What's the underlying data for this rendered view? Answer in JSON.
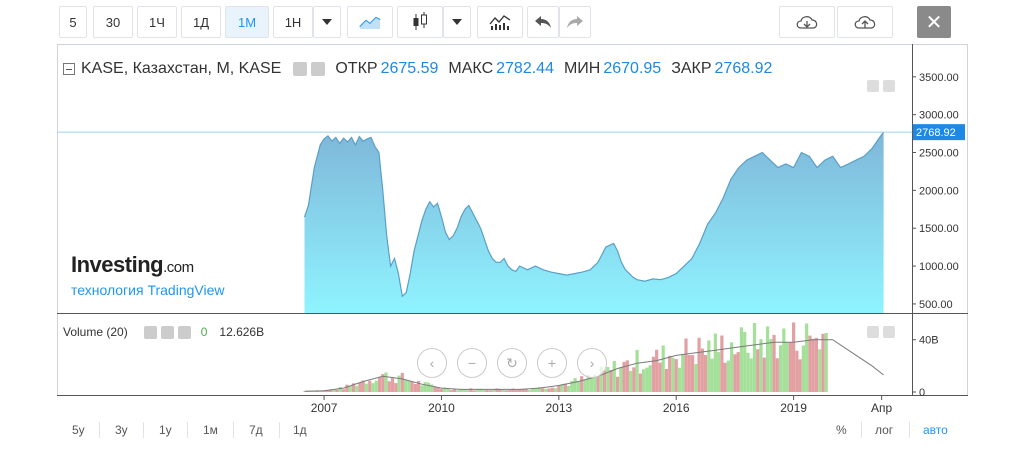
{
  "toolbar": {
    "intervals": [
      "5",
      "30",
      "1Ч",
      "1Д",
      "1М",
      "1Н"
    ],
    "active_interval": "1М",
    "close_label": "✕"
  },
  "legend": {
    "symbol": "KASE, Казахстан, M, KASE",
    "open_label": "ОТКР",
    "open": "2675.59",
    "high_label": "МАКС",
    "high": "2782.44",
    "low_label": "МИН",
    "low": "2670.95",
    "close_label": "ЗАКР",
    "close": "2768.92"
  },
  "volume_legend": {
    "label": "Volume (20)",
    "value0": "0",
    "value1": "12.626B"
  },
  "watermark": {
    "brand": "Investing",
    "brand_suffix": ".com",
    "sub": "технология TradingView"
  },
  "bottom_bar": {
    "ranges": [
      "5y",
      "3y",
      "1y",
      "1м",
      "7д",
      "1д"
    ],
    "percent": "%",
    "log": "лог",
    "auto": "авто"
  },
  "colors": {
    "area_top": "#7fb7d9",
    "area_bottom": "#8ff4ff",
    "line": "#5a9fc7",
    "vol_up": "#a5e09a",
    "vol_down": "#e3a0a3",
    "vol_ma": "#7a7a7a",
    "price_badge": "#1e88e5"
  },
  "chart_data": {
    "type": "area",
    "y_tick_labels": [
      "3500.00",
      "3000.00",
      "2500.00",
      "2000.00",
      "1500.00",
      "1000.00",
      "500.00"
    ],
    "y_ticks": [
      3500,
      3000,
      2500,
      2000,
      1500,
      1000,
      500
    ],
    "ylim": [
      380,
      3920
    ],
    "x_tick_labels": [
      "2007",
      "2010",
      "2013",
      "2016",
      "2019",
      "Апр"
    ],
    "x_ticks": [
      2007,
      2010,
      2013,
      2016,
      2019,
      2021.25
    ],
    "xlim": [
      2000.2,
      2022.0
    ],
    "last_price_label": "2768.92",
    "last_price": 2768.92,
    "series": [
      {
        "x": [
          2006.5,
          2006.6,
          2006.75,
          2006.9,
          2007.0,
          2007.1,
          2007.2,
          2007.3,
          2007.4,
          2007.5,
          2007.6,
          2007.7,
          2007.8,
          2007.9,
          2008.0,
          2008.1,
          2008.2,
          2008.3,
          2008.4,
          2008.5,
          2008.6,
          2008.7,
          2008.8,
          2008.9,
          2009.0,
          2009.1,
          2009.2,
          2009.3,
          2009.4,
          2009.5,
          2009.6,
          2009.7,
          2009.8,
          2009.9,
          2010.0,
          2010.1,
          2010.2,
          2010.3,
          2010.4,
          2010.5,
          2010.6,
          2010.7,
          2010.8,
          2010.9,
          2011.0,
          2011.1,
          2011.2,
          2011.3,
          2011.4,
          2011.5,
          2011.6,
          2011.7,
          2011.8,
          2011.9,
          2012.0,
          2012.2,
          2012.4,
          2012.6,
          2012.8,
          2013.0,
          2013.2,
          2013.4,
          2013.6,
          2013.8,
          2014.0,
          2014.2,
          2014.4,
          2014.5,
          2014.6,
          2014.7,
          2014.8,
          2014.9,
          2015.0,
          2015.2,
          2015.4,
          2015.6,
          2015.8,
          2016.0,
          2016.2,
          2016.4,
          2016.6,
          2016.8,
          2017.0,
          2017.2,
          2017.4,
          2017.6,
          2017.8,
          2018.0,
          2018.2,
          2018.4,
          2018.6,
          2018.8,
          2019.0,
          2019.2,
          2019.4,
          2019.6,
          2019.8,
          2020.0,
          2020.2,
          2020.4,
          2020.6,
          2020.8,
          2021.0,
          2021.2,
          2021.3
        ],
        "y": [
          1650,
          1800,
          2300,
          2600,
          2680,
          2720,
          2650,
          2700,
          2620,
          2690,
          2640,
          2700,
          2600,
          2710,
          2650,
          2680,
          2700,
          2580,
          2500,
          2000,
          1400,
          1000,
          1100,
          900,
          600,
          650,
          900,
          1200,
          1400,
          1600,
          1750,
          1850,
          1780,
          1830,
          1650,
          1450,
          1350,
          1400,
          1500,
          1650,
          1750,
          1800,
          1700,
          1600,
          1500,
          1350,
          1200,
          1100,
          1050,
          1050,
          1100,
          1000,
          950,
          930,
          1000,
          950,
          1000,
          950,
          920,
          900,
          880,
          900,
          920,
          950,
          1050,
          1250,
          1300,
          1200,
          1050,
          950,
          900,
          850,
          820,
          800,
          830,
          820,
          850,
          900,
          1000,
          1100,
          1300,
          1550,
          1700,
          1900,
          2150,
          2300,
          2400,
          2450,
          2500,
          2400,
          2300,
          2350,
          2300,
          2500,
          2450,
          2300,
          2400,
          2450,
          2300,
          2350,
          2400,
          2450,
          2550,
          2700,
          2768.92
        ]
      }
    ],
    "volume": {
      "ylabel_ticks": [
        "40B",
        "0"
      ],
      "ylim": [
        0,
        52
      ],
      "ma_x": [
        2006.5,
        2007.0,
        2007.5,
        2008.0,
        2008.5,
        2009.0,
        2009.5,
        2010.0,
        2010.5,
        2011.0,
        2011.5,
        2012.0,
        2012.5,
        2013.0,
        2013.5,
        2014.0,
        2014.5,
        2015.0,
        2015.5,
        2016.0,
        2016.5,
        2017.0,
        2017.5,
        2018.0,
        2018.5,
        2019.0,
        2019.5,
        2020.0,
        2020.5,
        2021.0,
        2021.3
      ],
      "ma_y": [
        0.5,
        1,
        3,
        8,
        12,
        10,
        6,
        3,
        2,
        2,
        2,
        2,
        3,
        5,
        8,
        12,
        18,
        22,
        24,
        28,
        30,
        32,
        34,
        36,
        38,
        38,
        40,
        40,
        30,
        20,
        13
      ]
    }
  }
}
